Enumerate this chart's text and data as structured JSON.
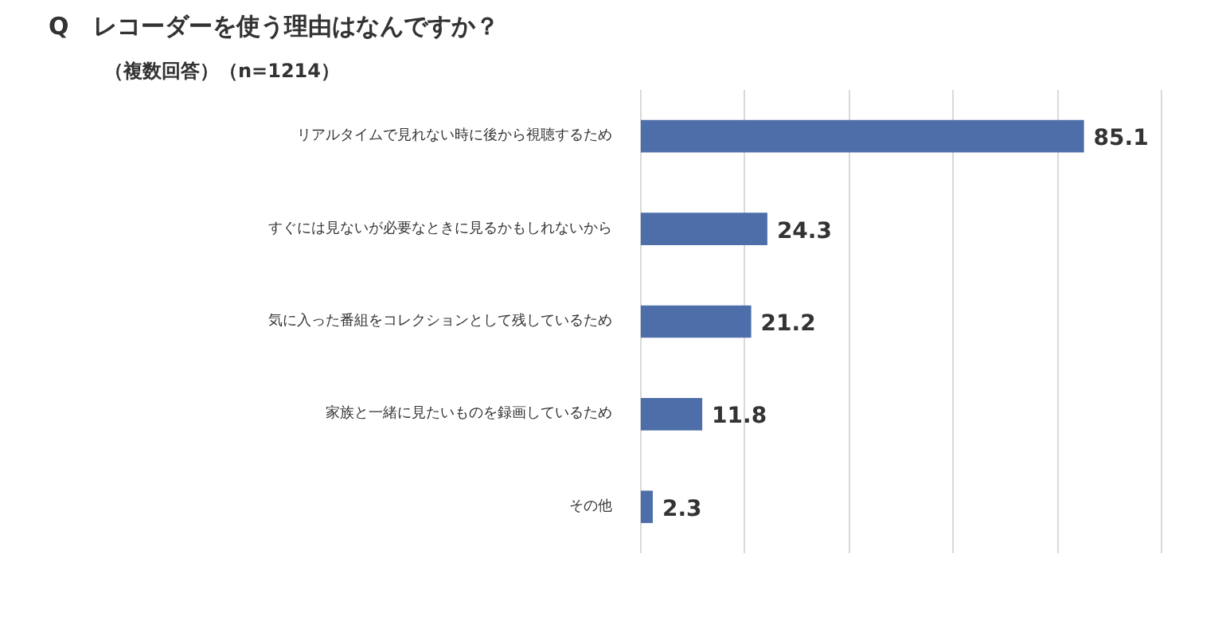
{
  "chart_data": {
    "type": "bar",
    "orientation": "horizontal",
    "title": "Q　レコーダーを使う理由はなんですか？",
    "subtitle": "（複数回答）（n=1214）",
    "categories": [
      "リアルタイムで見れない時に後から視聴するため",
      "すぐには見ないが必要なときに見るかもしれないから",
      "気に入った番組をコレクションとして残しているため",
      "家族と一緒に見たいものを録画しているため",
      "その他"
    ],
    "values": [
      85.1,
      24.3,
      21.2,
      11.8,
      2.3
    ],
    "color": "#4d6ea8",
    "xticks": [
      {
        "value": 0,
        "label": null
      },
      {
        "value": 20,
        "label": null
      },
      {
        "value": 40,
        "label": null
      },
      {
        "value": 60,
        "label": null
      },
      {
        "value": 80,
        "label": null
      },
      {
        "value": 100,
        "label": null
      }
    ],
    "grid": "x",
    "tick_labels": "y",
    "data_labels": true
  }
}
